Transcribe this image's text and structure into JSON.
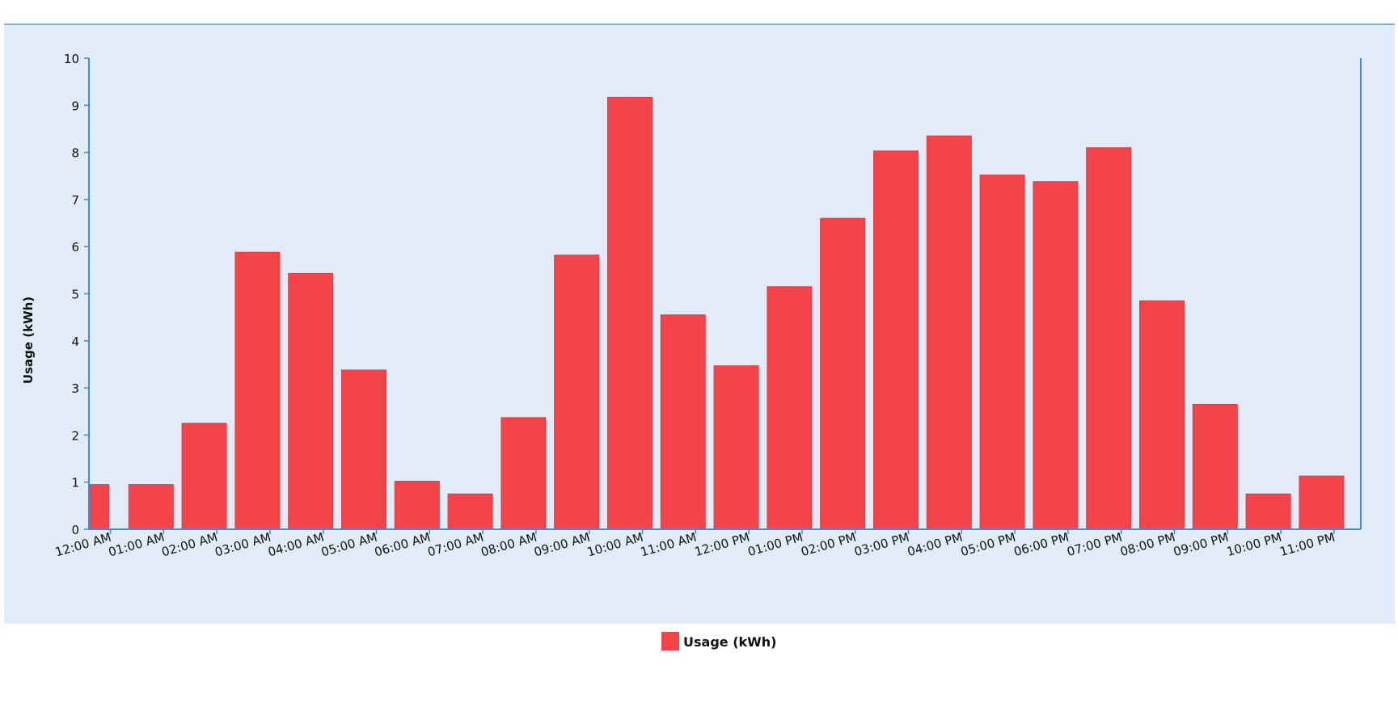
{
  "chart_data": {
    "type": "bar",
    "title": "",
    "xlabel": "",
    "ylabel": "Usage (kWh)",
    "ylim": [
      0,
      10
    ],
    "yticks": [
      0,
      1,
      2,
      3,
      4,
      5,
      6,
      7,
      8,
      9,
      10
    ],
    "grid": false,
    "legend_position": "bottom-center",
    "categories": [
      "12:00 AM",
      "01:00 AM",
      "02:00 AM",
      "03:00 AM",
      "04:00 AM",
      "05:00 AM",
      "06:00 AM",
      "07:00 AM",
      "08:00 AM",
      "09:00 AM",
      "10:00 AM",
      "11:00 AM",
      "12:00 PM",
      "01:00 PM",
      "02:00 PM",
      "03:00 PM",
      "04:00 PM",
      "05:00 PM",
      "06:00 PM",
      "07:00 PM",
      "08:00 PM",
      "09:00 PM",
      "10:00 PM",
      "11:00 PM"
    ],
    "series": [
      {
        "name": "Usage (kWh)",
        "color": "#f24449",
        "values": [
          0.95,
          0.95,
          2.25,
          5.88,
          5.43,
          3.38,
          1.02,
          0.75,
          2.37,
          5.82,
          9.17,
          4.55,
          3.47,
          5.15,
          6.6,
          8.03,
          8.35,
          7.52,
          7.38,
          8.1,
          4.85,
          2.65,
          0.75,
          1.13
        ]
      }
    ],
    "colors": {
      "plot_background": "#e1ecf8",
      "axis": "#3a8de0",
      "bar": "#f24449"
    }
  }
}
